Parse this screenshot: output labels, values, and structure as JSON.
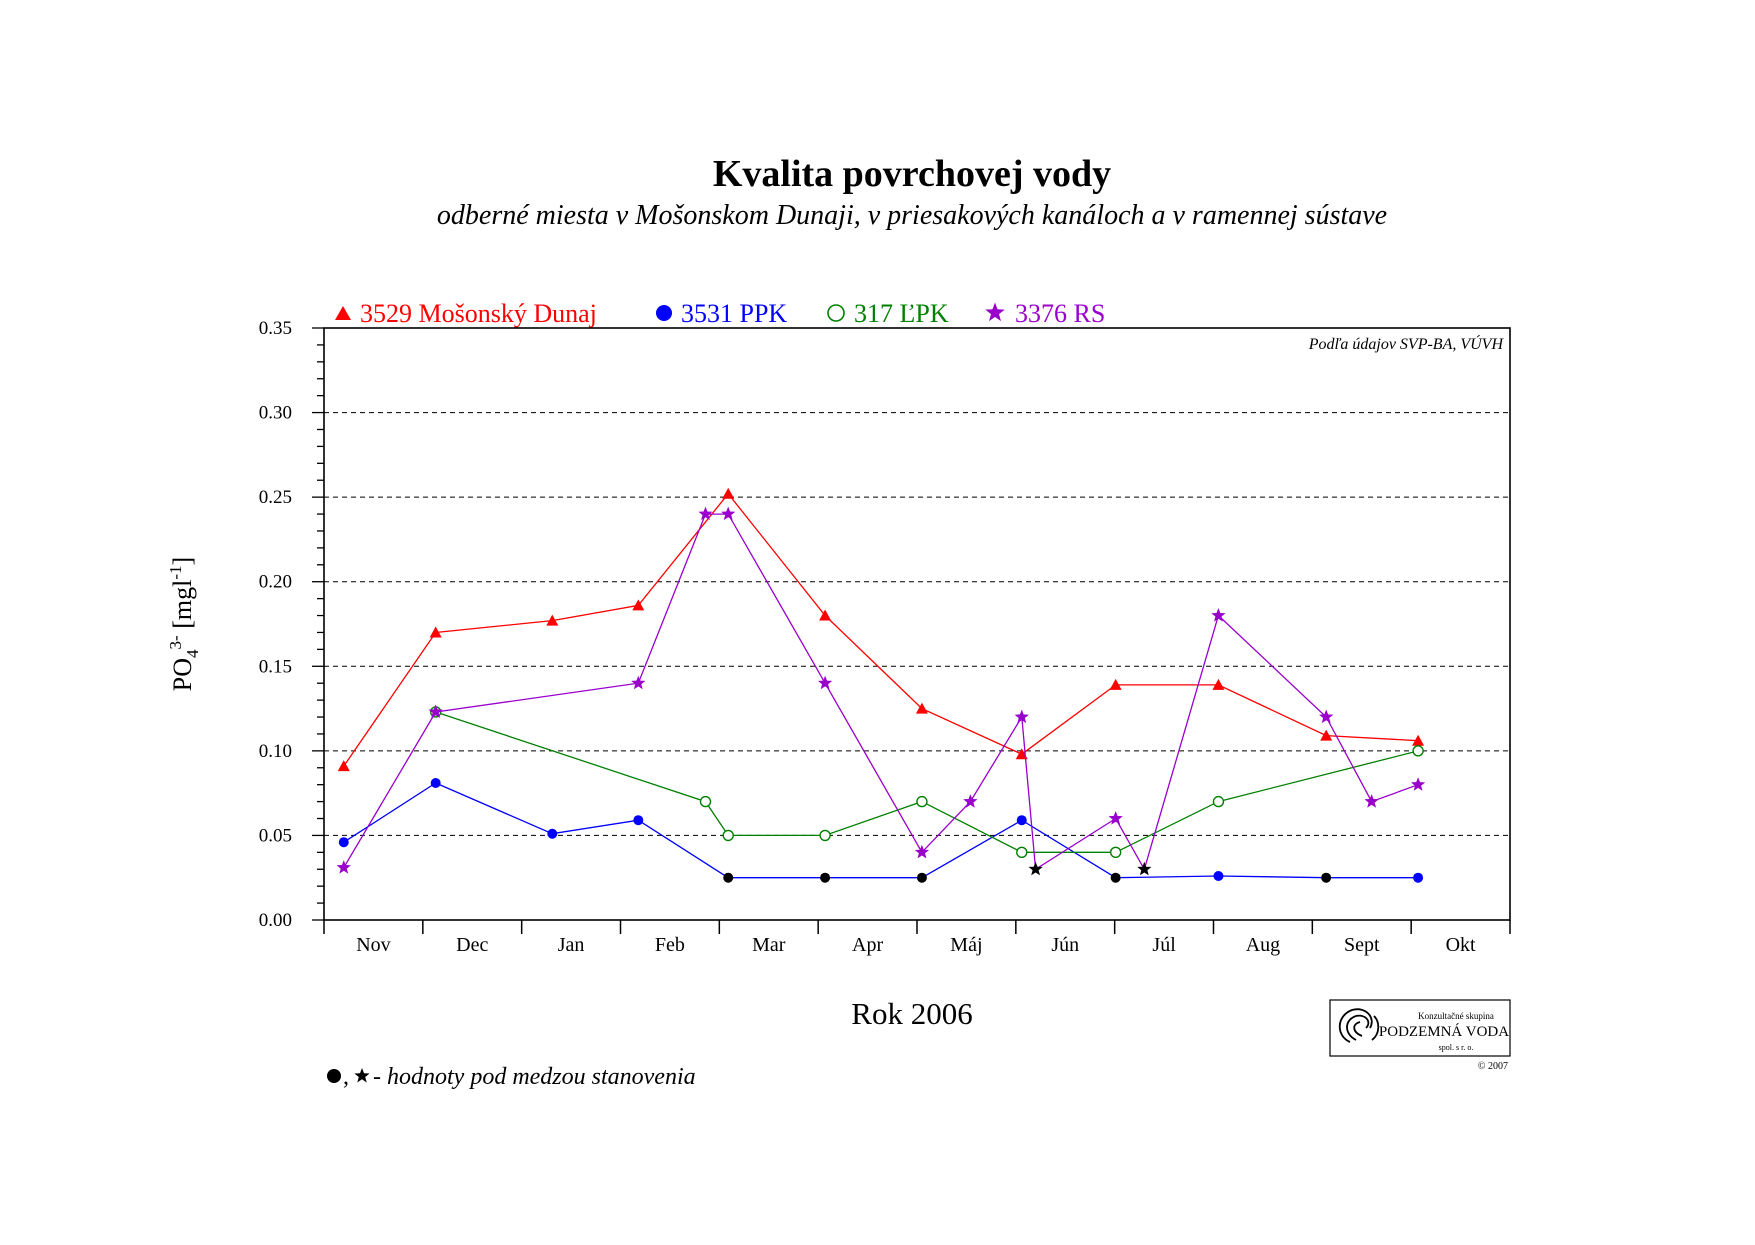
{
  "chart_data": {
    "type": "line",
    "title": "Kvalita povrchovej vody",
    "subtitle": "odberné miesta v Mošonskom Dunaji, v priesakových kanáloch a v ramennej sústave",
    "source_note": "Podľa údajov SVP-BA, VÚVH",
    "ylabel": {
      "base": "PO",
      "sub": "4",
      "sup": "3-",
      "unit": " [mgl",
      "unit_sup": "-1",
      "close": "]"
    },
    "xlabel": "Rok 2006",
    "ylim": [
      0,
      0.35
    ],
    "y_ticks": [
      "0.00",
      "0.05",
      "0.10",
      "0.15",
      "0.20",
      "0.25",
      "0.30",
      "0.35"
    ],
    "y_tick_values": [
      0,
      0.05,
      0.1,
      0.15,
      0.2,
      0.25,
      0.3,
      0.35
    ],
    "xlim": [
      0,
      12
    ],
    "months": [
      "Nov",
      "Dec",
      "Jan",
      "Feb",
      "Mar",
      "Apr",
      "Máj",
      "Jún",
      "Júl",
      "Aug",
      "Sept",
      "Okt"
    ],
    "grid": "dashed horizontal at 0.05 intervals",
    "legend_position": "top",
    "footnote": " - hodnoty pod medzou stanovenia",
    "below_detection_color": "#000000",
    "series": [
      {
        "name": "3529 Mošonský Dunaj",
        "color": "#ff0000",
        "marker": "triangle",
        "points": [
          [
            0.2,
            0.091
          ],
          [
            1.13,
            0.17
          ],
          [
            2.31,
            0.177
          ],
          [
            3.18,
            0.186
          ],
          [
            4.09,
            0.252
          ],
          [
            5.07,
            0.18
          ],
          [
            6.05,
            0.125
          ],
          [
            7.06,
            0.098
          ],
          [
            8.01,
            0.139
          ],
          [
            9.05,
            0.139
          ],
          [
            10.14,
            0.109
          ],
          [
            11.07,
            0.106
          ]
        ]
      },
      {
        "name": "3531 PPK",
        "color": "#0000ff",
        "marker": "circle",
        "points": [
          [
            0.2,
            0.046
          ],
          [
            1.13,
            0.081
          ],
          [
            2.31,
            0.051
          ],
          [
            3.18,
            0.059
          ],
          [
            4.09,
            0.025
          ],
          [
            5.07,
            0.025
          ],
          [
            6.05,
            0.025
          ],
          [
            7.06,
            0.059
          ],
          [
            8.01,
            0.025
          ],
          [
            9.05,
            0.026
          ],
          [
            10.14,
            0.025
          ],
          [
            11.07,
            0.025
          ]
        ],
        "below_detection": [
          4,
          5,
          6,
          8,
          10
        ]
      },
      {
        "name": "317 ĽPK",
        "color": "#008000",
        "marker": "circle-open",
        "points": [
          [
            1.13,
            0.123
          ],
          [
            3.86,
            0.07
          ],
          [
            4.09,
            0.05
          ],
          [
            5.07,
            0.05
          ],
          [
            6.05,
            0.07
          ],
          [
            7.06,
            0.04
          ],
          [
            8.01,
            0.04
          ],
          [
            9.05,
            0.07
          ],
          [
            11.07,
            0.1
          ]
        ]
      },
      {
        "name": "3376 RS",
        "color": "#9900cc",
        "marker": "star",
        "points": [
          [
            0.2,
            0.031
          ],
          [
            1.13,
            0.123
          ],
          [
            3.18,
            0.14
          ],
          [
            3.86,
            0.24
          ],
          [
            4.09,
            0.24
          ],
          [
            5.07,
            0.14
          ],
          [
            6.05,
            0.04
          ],
          [
            6.54,
            0.07
          ],
          [
            7.06,
            0.12
          ],
          [
            7.2,
            0.03
          ],
          [
            8.01,
            0.06
          ],
          [
            8.3,
            0.03
          ],
          [
            9.05,
            0.18
          ],
          [
            10.14,
            0.12
          ],
          [
            10.6,
            0.07
          ],
          [
            11.07,
            0.08
          ]
        ],
        "below_detection": [
          9,
          11
        ]
      }
    ]
  },
  "logo": {
    "line1": "Konzultačné skupina",
    "line2": "PODZEMNÁ VODA",
    "line3": "spol. s r. o.",
    "copyright": "© 2007"
  }
}
